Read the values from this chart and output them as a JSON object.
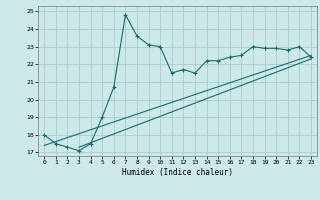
{
  "title": "",
  "xlabel": "Humidex (Indice chaleur)",
  "ylabel": "",
  "bg_color": "#cce8e8",
  "grid_color": "#aacccc",
  "line_color": "#1a6b6b",
  "xlim": [
    -0.5,
    23.5
  ],
  "ylim": [
    16.8,
    25.3
  ],
  "xticks": [
    0,
    1,
    2,
    3,
    4,
    5,
    6,
    7,
    8,
    9,
    10,
    11,
    12,
    13,
    14,
    15,
    16,
    17,
    18,
    19,
    20,
    21,
    22,
    23
  ],
  "yticks": [
    17,
    18,
    19,
    20,
    21,
    22,
    23,
    24,
    25
  ],
  "series1_x": [
    0,
    1,
    2,
    3,
    4,
    5,
    6,
    7,
    8,
    9,
    10,
    11,
    12,
    13,
    14,
    15,
    16,
    17,
    18,
    19,
    20,
    21,
    22,
    23
  ],
  "series1_y": [
    18.0,
    17.5,
    17.3,
    17.1,
    17.5,
    19.0,
    20.7,
    24.8,
    23.6,
    23.1,
    23.0,
    21.5,
    21.7,
    21.5,
    22.2,
    22.2,
    22.4,
    22.5,
    23.0,
    22.9,
    22.9,
    22.8,
    23.0,
    22.4
  ],
  "series2_x": [
    0,
    23
  ],
  "series2_y": [
    17.4,
    22.5
  ],
  "series3_x": [
    3,
    23
  ],
  "series3_y": [
    17.3,
    22.3
  ]
}
